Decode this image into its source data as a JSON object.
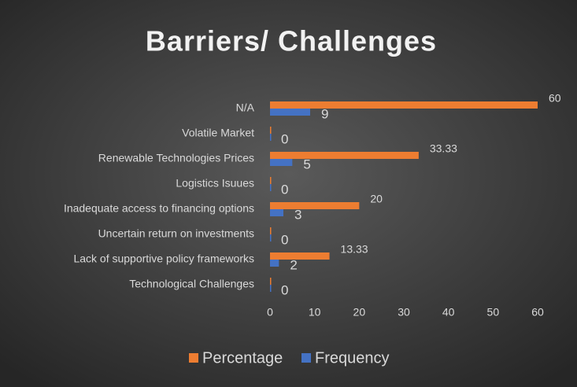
{
  "chart_data": {
    "type": "bar",
    "orientation": "horizontal",
    "title": "Barriers/ Challenges",
    "categories": [
      "N/A",
      "Volatile Market",
      "Renewable Technologies Prices",
      "Logistics Isuues",
      "Inadequate access to financing options",
      "Uncertain return on investments",
      "Lack of supportive policy frameworks",
      "Technological Challenges"
    ],
    "series": [
      {
        "name": "Percentage",
        "color": "#ed7d31",
        "values": [
          60,
          0,
          33.33,
          0,
          20,
          0,
          13.33,
          0
        ],
        "value_labels": [
          "60",
          null,
          "33.33",
          null,
          "20",
          null,
          "13.33",
          null
        ]
      },
      {
        "name": "Frequency",
        "color": "#4472c4",
        "values": [
          9,
          0,
          5,
          0,
          3,
          0,
          2,
          0
        ]
      }
    ],
    "xlim": [
      0,
      60
    ],
    "xticks": [
      0,
      10,
      20,
      30,
      40,
      50,
      60
    ],
    "grid": false,
    "legend": "bottom"
  }
}
